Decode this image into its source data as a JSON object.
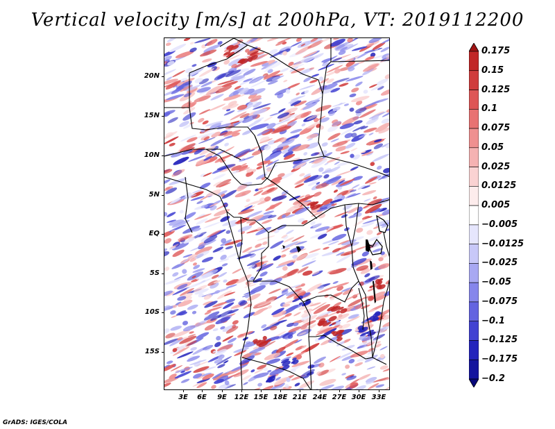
{
  "title": "Vertical velocity [m/s] at 200hPa, VT: 2019112200",
  "map": {
    "lat_labels": [
      "20N",
      "15N",
      "10N",
      "5N",
      "EQ",
      "5S",
      "10S",
      "15S"
    ],
    "lon_labels": [
      "3E",
      "6E",
      "9E",
      "12E",
      "15E",
      "18E",
      "21E",
      "24E",
      "27E",
      "30E",
      "33E"
    ],
    "field_name": "vertical velocity"
  },
  "colorbar": {
    "labels": [
      "0.175",
      "0.15",
      "0.125",
      "0.1",
      "0.075",
      "0.05",
      "0.025",
      "0.0125",
      "0.005",
      "−0.005",
      "−0.0125",
      "−0.025",
      "−0.05",
      "−0.075",
      "−0.1",
      "−0.125",
      "−0.175",
      "−0.2"
    ],
    "colors": [
      "#a01414",
      "#c12626",
      "#d03c3c",
      "#de5656",
      "#e87272",
      "#ef9090",
      "#f5b2b2",
      "#fad2d2",
      "#fdecec",
      "#ffffff",
      "#e6e6fd",
      "#c8c8f8",
      "#a8a8f2",
      "#8686eb",
      "#6464e0",
      "#4242d2",
      "#2424bc",
      "#14149e",
      "#08087a"
    ]
  },
  "credit": "GrADS: IGES/COLA"
}
